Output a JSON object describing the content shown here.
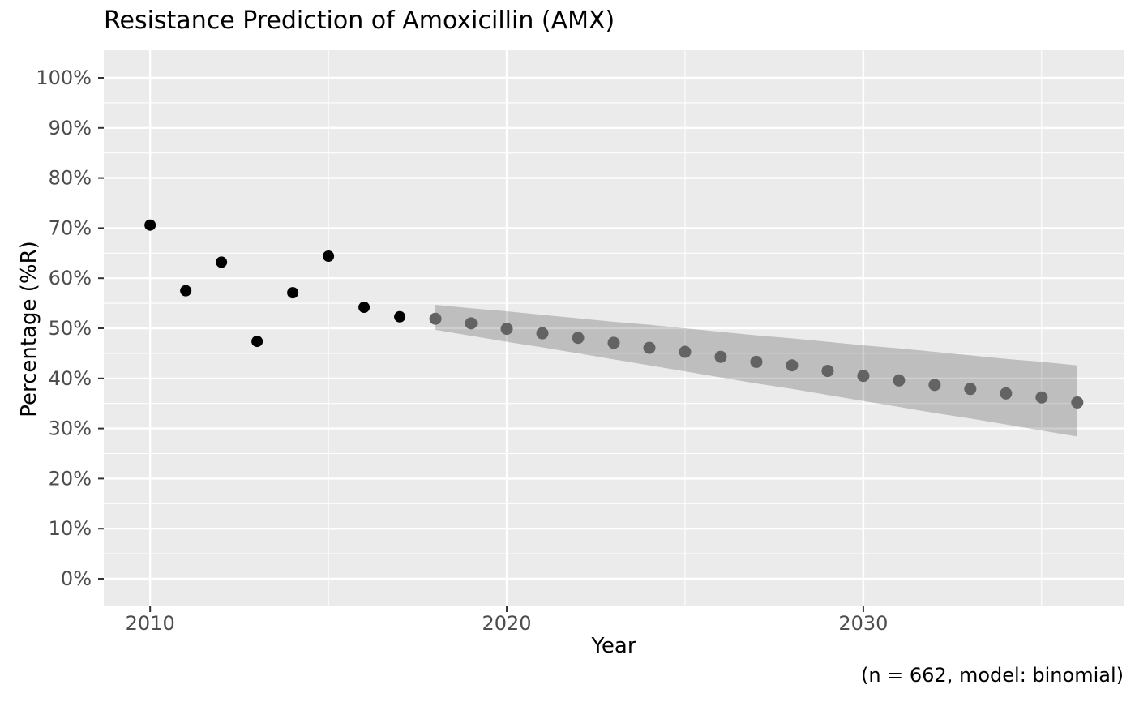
{
  "chart_data": {
    "type": "scatter",
    "title": "Resistance Prediction of Amoxicillin (AMX)",
    "xlabel": "Year",
    "ylabel": "Percentage (%R)",
    "caption": "(n = 662, model: binomial)",
    "legend": "none",
    "grid": "on",
    "panel_background": "#EBEBEB",
    "gridline_color": "#FFFFFF",
    "tick_label_color": "#4D4D4D",
    "tick_mark_color": "#333333",
    "xlim": [
      2008.7,
      2037.3
    ],
    "ylim": [
      -5.5,
      105.5
    ],
    "x_axis": {
      "major_ticks": [
        2010,
        2020,
        2030
      ],
      "tick_labels": [
        "2010",
        "2020",
        "2030"
      ],
      "minor_ticks": [
        2015,
        2025,
        2035
      ]
    },
    "y_axis": {
      "major_ticks": [
        0,
        10,
        20,
        30,
        40,
        50,
        60,
        70,
        80,
        90,
        100
      ],
      "tick_labels": [
        "0%",
        "10%",
        "20%",
        "30%",
        "40%",
        "50%",
        "60%",
        "70%",
        "80%",
        "90%",
        "100%"
      ],
      "minor_ticks": [
        5,
        15,
        25,
        35,
        45,
        55,
        65,
        75,
        85,
        95
      ]
    },
    "series": [
      {
        "name": "observed",
        "marker": "point",
        "color": "#000000",
        "radius": 7,
        "x": [
          2010,
          2011,
          2012,
          2013,
          2014,
          2015,
          2016,
          2017
        ],
        "y": [
          70.6,
          57.5,
          63.2,
          47.4,
          57.1,
          64.4,
          54.2,
          52.3
        ]
      },
      {
        "name": "predicted",
        "marker": "point",
        "color": "#636363",
        "radius": 7.5,
        "x": [
          2018,
          2019,
          2020,
          2021,
          2022,
          2023,
          2024,
          2025,
          2026,
          2027,
          2028,
          2029,
          2030,
          2031,
          2032,
          2033,
          2034,
          2035,
          2036
        ],
        "y": [
          51.9,
          51.0,
          49.9,
          49.0,
          48.1,
          47.1,
          46.1,
          45.3,
          44.3,
          43.3,
          42.6,
          41.5,
          40.5,
          39.6,
          38.7,
          37.9,
          37.0,
          36.2,
          35.2
        ]
      }
    ],
    "ribbon": {
      "name": "confidence-interval",
      "color": "rgba(0,0,0,0.19)",
      "x": [
        2018,
        2019,
        2020,
        2021,
        2022,
        2023,
        2024,
        2025,
        2026,
        2027,
        2028,
        2029,
        2030,
        2031,
        2032,
        2033,
        2034,
        2035,
        2036
      ],
      "lo": [
        49.7,
        48.5,
        47.3,
        46.2,
        45.0,
        43.8,
        42.6,
        41.4,
        40.2,
        39.0,
        37.9,
        36.7,
        35.5,
        34.3,
        33.1,
        32.0,
        30.8,
        29.6,
        28.4
      ],
      "hi": [
        54.7,
        54.0,
        53.4,
        52.7,
        52.0,
        51.3,
        50.7,
        50.0,
        49.3,
        48.6,
        48.0,
        47.3,
        46.6,
        46.0,
        45.3,
        44.6,
        43.9,
        43.3,
        42.6
      ]
    }
  }
}
